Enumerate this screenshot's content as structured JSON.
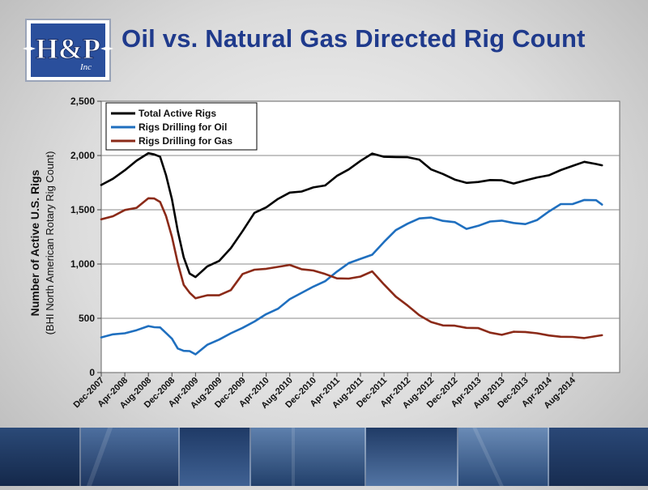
{
  "page": {
    "title": "Oil vs. Natural Gas Directed Rig Count"
  },
  "logo": {
    "text": "H&P",
    "sub": "Inc"
  },
  "colors": {
    "title": "#1f3a8c",
    "total": "#000000",
    "oil": "#1f6fbf",
    "gas": "#8b2a18",
    "logo_bg": "#2a4f9c"
  },
  "chart_data": {
    "type": "line",
    "ylabel": "Number of Active U.S. Rigs",
    "ylabel2": "(BHI North American Rotary Rig Count)",
    "ylim": [
      0,
      2500
    ],
    "yticks": [
      0,
      500,
      1000,
      1500,
      2000,
      2500
    ],
    "ytick_labels": [
      "0",
      "500",
      "1,000",
      "1,500",
      "2,000",
      "2,500"
    ],
    "xlim": [
      0,
      88
    ],
    "xtick_positions": [
      0,
      4,
      8,
      12,
      16,
      20,
      24,
      28,
      32,
      36,
      40,
      44,
      48,
      52,
      56,
      60,
      64,
      68,
      72,
      76,
      80
    ],
    "xtick_labels": [
      "Dec-2007",
      "Apr-2008",
      "Aug-2008",
      "Dec-2008",
      "Apr-2009",
      "Aug-2009",
      "Dec-2009",
      "Apr-2010",
      "Aug-2010",
      "Dec-2010",
      "Apr-2011",
      "Aug-2011",
      "Dec-2011",
      "Apr-2012",
      "Aug-2012",
      "Dec-2012",
      "Apr-2013",
      "Aug-2013",
      "Dec-2013",
      "Apr-2014",
      "Aug-2014"
    ],
    "grid": true,
    "legend_position": "top-left",
    "series": [
      {
        "name": "Total Active Rigs",
        "color": "#000000",
        "x": [
          0,
          2,
          4,
          6,
          8,
          9,
          10,
          11,
          12,
          13,
          14,
          15,
          16,
          18,
          20,
          22,
          24,
          26,
          28,
          30,
          32,
          34,
          36,
          38,
          40,
          42,
          44,
          46,
          48,
          50,
          52,
          54,
          56,
          58,
          60,
          62,
          64,
          66,
          68,
          70,
          72,
          74,
          76,
          78,
          80,
          82,
          84,
          85
        ],
        "values": [
          1740,
          1790,
          1860,
          1940,
          2030,
          2010,
          1980,
          1830,
          1600,
          1300,
          1050,
          920,
          880,
          970,
          1040,
          1150,
          1300,
          1460,
          1530,
          1600,
          1650,
          1680,
          1710,
          1720,
          1800,
          1880,
          1950,
          2010,
          2000,
          1990,
          1980,
          1950,
          1880,
          1830,
          1770,
          1760,
          1760,
          1770,
          1760,
          1750,
          1770,
          1790,
          1830,
          1870,
          1900,
          1930,
          1930,
          1910
        ]
      },
      {
        "name": "Rigs Drilling for Oil",
        "color": "#1f6fbf",
        "x": [
          0,
          2,
          4,
          6,
          8,
          9,
          10,
          11,
          12,
          13,
          14,
          15,
          16,
          18,
          20,
          22,
          24,
          26,
          28,
          30,
          32,
          34,
          36,
          38,
          40,
          42,
          44,
          46,
          48,
          50,
          52,
          54,
          56,
          58,
          60,
          62,
          64,
          66,
          68,
          70,
          72,
          74,
          76,
          78,
          80,
          82,
          84,
          85
        ],
        "values": [
          320,
          340,
          370,
          390,
          420,
          430,
          420,
          360,
          300,
          230,
          200,
          190,
          180,
          260,
          300,
          350,
          420,
          470,
          530,
          600,
          680,
          730,
          780,
          850,
          930,
          1000,
          1060,
          1090,
          1200,
          1300,
          1380,
          1420,
          1420,
          1410,
          1390,
          1320,
          1340,
          1400,
          1400,
          1370,
          1380,
          1410,
          1480,
          1540,
          1560,
          1590,
          1580,
          1560
        ]
      },
      {
        "name": "Rigs Drilling for Gas",
        "color": "#8b2a18",
        "x": [
          0,
          2,
          4,
          6,
          8,
          9,
          10,
          11,
          12,
          13,
          14,
          15,
          16,
          18,
          20,
          22,
          24,
          26,
          28,
          30,
          32,
          34,
          36,
          38,
          40,
          42,
          44,
          46,
          48,
          50,
          52,
          54,
          56,
          58,
          60,
          62,
          64,
          66,
          68,
          70,
          72,
          74,
          76,
          78,
          80,
          82,
          84,
          85
        ],
        "values": [
          1420,
          1440,
          1490,
          1530,
          1610,
          1600,
          1560,
          1450,
          1250,
          1000,
          820,
          740,
          680,
          700,
          720,
          760,
          900,
          960,
          960,
          970,
          980,
          960,
          940,
          900,
          880,
          870,
          880,
          920,
          820,
          700,
          610,
          540,
          470,
          430,
          420,
          420,
          410,
          360,
          360,
          380,
          370,
          350,
          350,
          330,
          320,
          330,
          340,
          340
        ]
      }
    ]
  }
}
